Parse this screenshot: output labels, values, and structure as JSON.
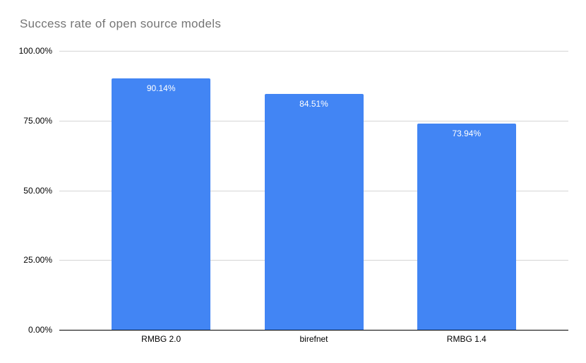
{
  "chart_data": {
    "type": "bar",
    "title": "Success rate of open source models",
    "categories": [
      "RMBG 2.0",
      "birefnet",
      "RMBG 1.4"
    ],
    "values": [
      90.14,
      84.51,
      73.94
    ],
    "value_labels": [
      "90.14%",
      "84.51%",
      "73.94%"
    ],
    "unit": "%",
    "ylim": [
      0,
      100
    ],
    "yticks": [
      {
        "value": 100,
        "label": "100.00%"
      },
      {
        "value": 75,
        "label": "75.00%"
      },
      {
        "value": 50,
        "label": "50.00%"
      },
      {
        "value": 25,
        "label": "25.00%"
      },
      {
        "value": 0,
        "label": "0.00%"
      }
    ],
    "grid": true,
    "legend": "none",
    "colors": {
      "bar": "#4285f4",
      "bar_label": "#ffffff",
      "title": "#757575",
      "axis_text": "#000000",
      "gridline": "#d5d5d5",
      "baseline": "#000000",
      "background": "#ffffff"
    }
  }
}
